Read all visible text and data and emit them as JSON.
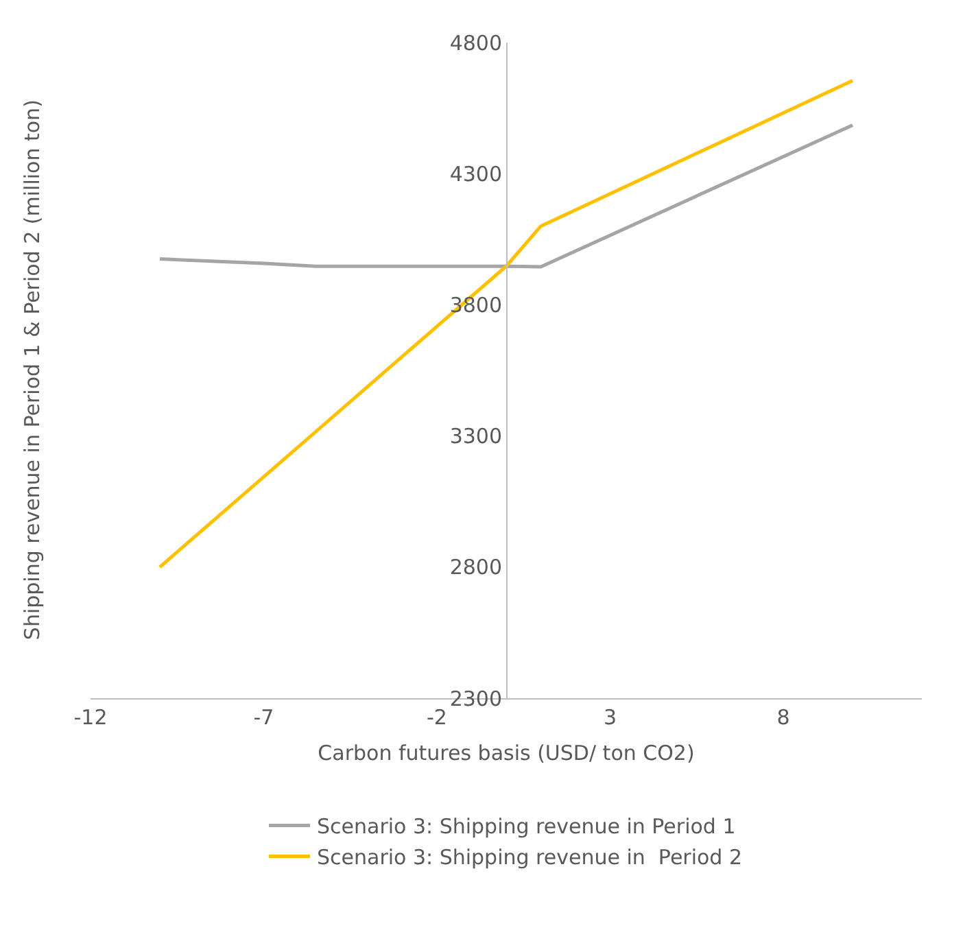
{
  "chart_data": {
    "type": "line",
    "xlabel": "Carbon futures basis (USD/ ton CO2)",
    "ylabel": "Shipping revenue in Period 1 & Period 2 (million ton)",
    "xlim": [
      -12,
      12
    ],
    "xticks": [
      -12,
      -7,
      -2,
      3,
      8
    ],
    "ylim": [
      2300,
      4800
    ],
    "yticks": [
      2300,
      2800,
      3300,
      3800,
      4300,
      4800
    ],
    "legend": "bottom",
    "marker": "none",
    "line_style": "solid",
    "series": [
      {
        "name": "Scenario 3: Shipping revenue in Period 1",
        "color": "#a5a5a5",
        "x": [
          -10,
          -7,
          -5.5,
          0,
          1,
          10
        ],
        "values": [
          3975,
          3958,
          3947,
          3947,
          3945,
          4485
        ]
      },
      {
        "name": "Scenario 3: Shipping revenue in  Period 2",
        "color": "#ffc000",
        "x": [
          -10,
          0,
          1,
          10
        ],
        "values": [
          2800,
          3947,
          4100,
          4655
        ]
      }
    ]
  }
}
